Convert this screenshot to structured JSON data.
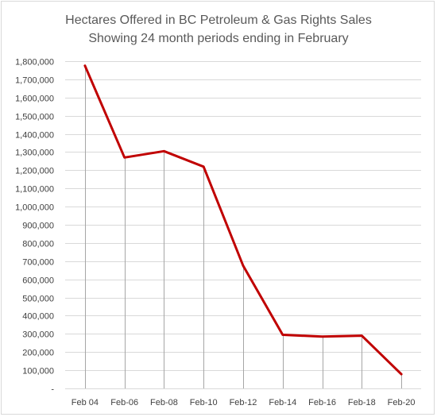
{
  "chart_data": {
    "type": "line",
    "title": "Hectares Offered in BC Petroleum & Gas Rights Sales",
    "subtitle": "Showing 24 month periods ending in February",
    "xlabel": "",
    "ylabel": "",
    "categories": [
      "Feb 04",
      "Feb-06",
      "Feb-08",
      "Feb-10",
      "Feb-12",
      "Feb-14",
      "Feb-16",
      "Feb-18",
      "Feb-20"
    ],
    "series": [
      {
        "values": [
          1775000,
          1270000,
          1305000,
          1220000,
          675000,
          295000,
          285000,
          290000,
          78000
        ]
      }
    ],
    "ylim": [
      0,
      1800000
    ],
    "ytick_step": 100000,
    "y_tick_labels": [
      "-",
      "100,000",
      "200,000",
      "300,000",
      "400,000",
      "500,000",
      "600,000",
      "700,000",
      "800,000",
      "900,000",
      "1,000,000",
      "1,100,000",
      "1,200,000",
      "1,300,000",
      "1,400,000",
      "1,500,000",
      "1,600,000",
      "1,700,000",
      "1,800,000"
    ],
    "grid": true,
    "drop_lines": true,
    "legend": "none",
    "colors": {
      "line": "#c00000",
      "grid": "#d9d9d9",
      "drop_line": "#a6a6a6",
      "axis_text": "#404040",
      "title": "#595959"
    }
  }
}
